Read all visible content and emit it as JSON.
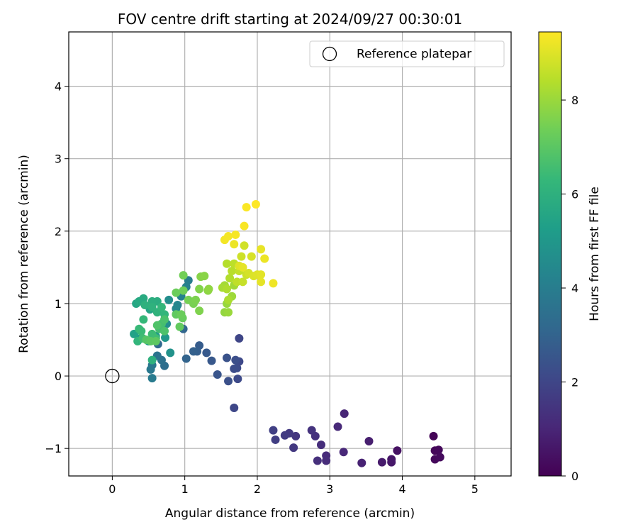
{
  "chart_data": {
    "type": "scatter",
    "title": "FOV centre drift starting at 2024/09/27 00:30:01",
    "xlabel": "Angular distance from reference (arcmin)",
    "ylabel": "Rotation from reference (arcmin)",
    "xlim": [
      -0.6,
      5.5
    ],
    "ylim": [
      -1.38,
      4.75
    ],
    "xticks": [
      0,
      1,
      2,
      3,
      4,
      5
    ],
    "yticks": [
      -1,
      0,
      1,
      2,
      3,
      4
    ],
    "xtick_labels": [
      "0",
      "1",
      "2",
      "3",
      "4",
      "5"
    ],
    "ytick_labels": [
      "−1",
      "0",
      "1",
      "2",
      "3",
      "4"
    ],
    "grid": true,
    "legend": {
      "placement": "top-right",
      "entries": [
        {
          "label": "Reference platepar",
          "marker": "open-circle"
        }
      ]
    },
    "reference_point": {
      "x": 0,
      "y": 0
    },
    "colorbar": {
      "label": "Hours from first FF file",
      "colormap": "viridis",
      "range": [
        0,
        9.45
      ],
      "ticks": [
        0,
        2,
        4,
        6,
        8
      ],
      "tick_labels": [
        "0",
        "2",
        "4",
        "6",
        "8"
      ]
    },
    "point_encoding": [
      "x",
      "y",
      "hours"
    ],
    "points": [
      [
        4.43,
        -0.83,
        0.1
      ],
      [
        4.45,
        -1.03,
        0.15
      ],
      [
        4.5,
        -1.02,
        0.2
      ],
      [
        4.45,
        -1.15,
        0.2
      ],
      [
        4.52,
        -1.12,
        0.25
      ],
      [
        3.93,
        -1.03,
        0.45
      ],
      [
        3.85,
        -1.15,
        0.55
      ],
      [
        3.85,
        -1.19,
        0.6
      ],
      [
        3.72,
        -1.19,
        0.7
      ],
      [
        3.54,
        -0.9,
        0.8
      ],
      [
        3.44,
        -1.2,
        0.9
      ],
      [
        3.2,
        -0.52,
        1.0
      ],
      [
        3.19,
        -1.05,
        1.05
      ],
      [
        3.11,
        -0.7,
        1.1
      ],
      [
        2.95,
        -1.1,
        1.15
      ],
      [
        2.95,
        -1.17,
        1.2
      ],
      [
        2.88,
        -0.95,
        1.25
      ],
      [
        2.83,
        -1.17,
        1.3
      ],
      [
        2.8,
        -0.83,
        1.35
      ],
      [
        2.75,
        -0.75,
        1.4
      ],
      [
        2.53,
        -0.83,
        1.5
      ],
      [
        2.5,
        -0.99,
        1.55
      ],
      [
        2.44,
        -0.79,
        1.6
      ],
      [
        2.38,
        -0.82,
        1.65
      ],
      [
        2.25,
        -0.88,
        1.75
      ],
      [
        2.22,
        -0.75,
        1.8
      ],
      [
        1.75,
        0.52,
        2.0
      ],
      [
        1.68,
        -0.44,
        2.05
      ],
      [
        1.75,
        0.2,
        2.1
      ],
      [
        1.73,
        -0.04,
        2.15
      ],
      [
        1.72,
        0.11,
        2.2
      ],
      [
        1.68,
        0.1,
        2.25
      ],
      [
        1.7,
        0.22,
        2.3
      ],
      [
        1.6,
        -0.07,
        2.35
      ],
      [
        1.58,
        0.25,
        2.4
      ],
      [
        1.45,
        0.02,
        2.5
      ],
      [
        1.37,
        0.21,
        2.6
      ],
      [
        1.3,
        0.32,
        2.65
      ],
      [
        1.2,
        0.42,
        2.75
      ],
      [
        1.17,
        0.34,
        2.85
      ],
      [
        1.12,
        0.34,
        2.9
      ],
      [
        1.02,
        0.24,
        3.0
      ],
      [
        0.98,
        0.65,
        3.1
      ],
      [
        0.63,
        0.44,
        3.2
      ],
      [
        0.72,
        0.14,
        3.4
      ],
      [
        0.68,
        0.22,
        3.5
      ],
      [
        0.62,
        0.28,
        3.6
      ],
      [
        0.55,
        0.15,
        3.7
      ],
      [
        0.53,
        0.09,
        3.8
      ],
      [
        0.55,
        -0.03,
        3.9
      ],
      [
        1.05,
        1.32,
        4.0
      ],
      [
        1.02,
        1.23,
        4.1
      ],
      [
        0.95,
        1.1,
        4.2
      ],
      [
        0.9,
        0.98,
        4.3
      ],
      [
        0.88,
        0.93,
        4.4
      ],
      [
        0.78,
        1.05,
        4.6
      ],
      [
        0.75,
        0.72,
        4.7
      ],
      [
        0.8,
        0.32,
        4.8
      ],
      [
        0.73,
        0.53,
        5.0
      ],
      [
        0.6,
        0.55,
        5.1
      ],
      [
        0.5,
        0.48,
        5.2
      ],
      [
        0.4,
        0.53,
        5.3
      ],
      [
        0.3,
        0.58,
        5.4
      ],
      [
        0.52,
        0.92,
        5.5
      ],
      [
        0.33,
        1.0,
        5.6
      ],
      [
        0.37,
        1.03,
        5.7
      ],
      [
        0.43,
        1.07,
        5.75
      ],
      [
        0.62,
        1.03,
        5.85
      ],
      [
        0.55,
        1.03,
        5.9
      ],
      [
        0.45,
        0.98,
        6.0
      ],
      [
        0.55,
        0.95,
        6.05
      ],
      [
        0.62,
        0.88,
        6.1
      ],
      [
        0.72,
        0.85,
        6.2
      ],
      [
        0.68,
        0.95,
        6.25
      ],
      [
        0.43,
        0.78,
        6.3
      ],
      [
        0.37,
        0.65,
        6.35
      ],
      [
        0.4,
        0.62,
        6.4
      ],
      [
        0.55,
        0.58,
        6.45
      ],
      [
        0.6,
        0.52,
        6.5
      ],
      [
        0.65,
        0.65,
        6.55
      ],
      [
        0.68,
        0.72,
        6.6
      ],
      [
        0.72,
        0.78,
        6.7
      ],
      [
        0.72,
        0.62,
        6.75
      ],
      [
        0.62,
        0.7,
        6.8
      ],
      [
        0.55,
        0.22,
        6.0
      ],
      [
        0.35,
        0.48,
        6.2
      ],
      [
        0.42,
        0.52,
        6.5
      ],
      [
        0.47,
        0.5,
        6.9
      ],
      [
        0.53,
        0.48,
        7.0
      ],
      [
        0.6,
        0.48,
        7.05
      ],
      [
        0.88,
        0.85,
        7.1
      ],
      [
        0.93,
        0.68,
        7.15
      ],
      [
        0.97,
        0.8,
        7.2
      ],
      [
        0.95,
        0.85,
        7.25
      ],
      [
        0.88,
        1.15,
        7.3
      ],
      [
        0.98,
        1.18,
        7.35
      ],
      [
        0.98,
        1.39,
        7.4
      ],
      [
        1.05,
        1.05,
        7.45
      ],
      [
        1.12,
        1.0,
        7.5
      ],
      [
        1.15,
        1.05,
        7.55
      ],
      [
        1.2,
        0.9,
        7.6
      ],
      [
        1.2,
        1.2,
        7.65
      ],
      [
        1.22,
        1.37,
        7.7
      ],
      [
        1.27,
        1.38,
        7.75
      ],
      [
        1.32,
        1.18,
        7.8
      ],
      [
        1.33,
        1.2,
        7.85
      ],
      [
        1.55,
        0.88,
        7.9
      ],
      [
        1.58,
        1.0,
        7.95
      ],
      [
        1.6,
        0.88,
        8.0
      ],
      [
        1.65,
        1.1,
        8.05
      ],
      [
        1.68,
        1.25,
        8.1
      ],
      [
        1.55,
        1.25,
        8.15
      ],
      [
        1.52,
        1.22,
        8.2
      ],
      [
        1.6,
        1.05,
        8.25
      ],
      [
        1.58,
        1.2,
        8.3
      ],
      [
        1.62,
        1.35,
        8.35
      ],
      [
        1.58,
        1.55,
        8.4
      ],
      [
        1.65,
        1.45,
        8.45
      ],
      [
        1.68,
        1.55,
        8.5
      ],
      [
        1.72,
        1.3,
        8.55
      ],
      [
        1.75,
        1.45,
        8.6
      ],
      [
        1.8,
        1.3,
        8.65
      ],
      [
        1.85,
        1.4,
        8.7
      ],
      [
        1.78,
        1.65,
        8.75
      ],
      [
        1.82,
        1.8,
        8.8
      ],
      [
        1.88,
        1.42,
        8.85
      ],
      [
        1.92,
        1.65,
        8.9
      ],
      [
        1.95,
        1.38,
        8.95
      ],
      [
        2.0,
        1.4,
        9.0
      ],
      [
        2.05,
        1.4,
        9.05
      ],
      [
        2.05,
        1.3,
        9.1
      ],
      [
        2.05,
        1.75,
        9.15
      ],
      [
        2.1,
        1.62,
        9.2
      ],
      [
        2.22,
        1.28,
        9.25
      ],
      [
        1.68,
        1.82,
        9.2
      ],
      [
        1.55,
        1.88,
        9.3
      ],
      [
        1.6,
        1.93,
        9.32
      ],
      [
        1.7,
        1.95,
        9.35
      ],
      [
        1.75,
        1.52,
        9.0
      ],
      [
        1.8,
        1.5,
        9.1
      ],
      [
        1.82,
        2.07,
        9.38
      ],
      [
        1.85,
        2.33,
        9.4
      ],
      [
        1.98,
        2.37,
        9.45
      ]
    ]
  }
}
